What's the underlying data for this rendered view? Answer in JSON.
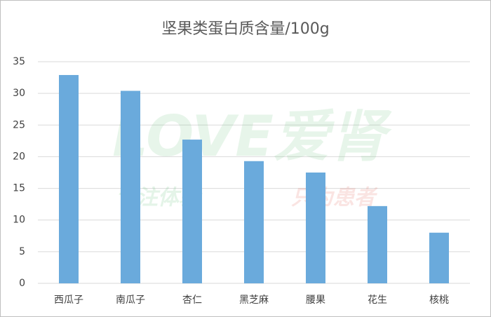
{
  "chart_data": {
    "type": "bar",
    "title": "坚果类蛋白质含量/100g",
    "categories": [
      "西瓜子",
      "南瓜子",
      "杏仁",
      "黑芝麻",
      "腰果",
      "花生",
      "核桃"
    ],
    "values": [
      32.9,
      30.4,
      22.7,
      19.3,
      17.5,
      12.2,
      8.0
    ],
    "color": "#6aaadc",
    "ylim": [
      0,
      35
    ],
    "yticks": [
      0,
      5,
      10,
      15,
      20,
      25,
      30,
      35
    ],
    "grid": true,
    "watermark": [
      "LOVE爱肾",
      "专注体验",
      "只为患者"
    ]
  }
}
